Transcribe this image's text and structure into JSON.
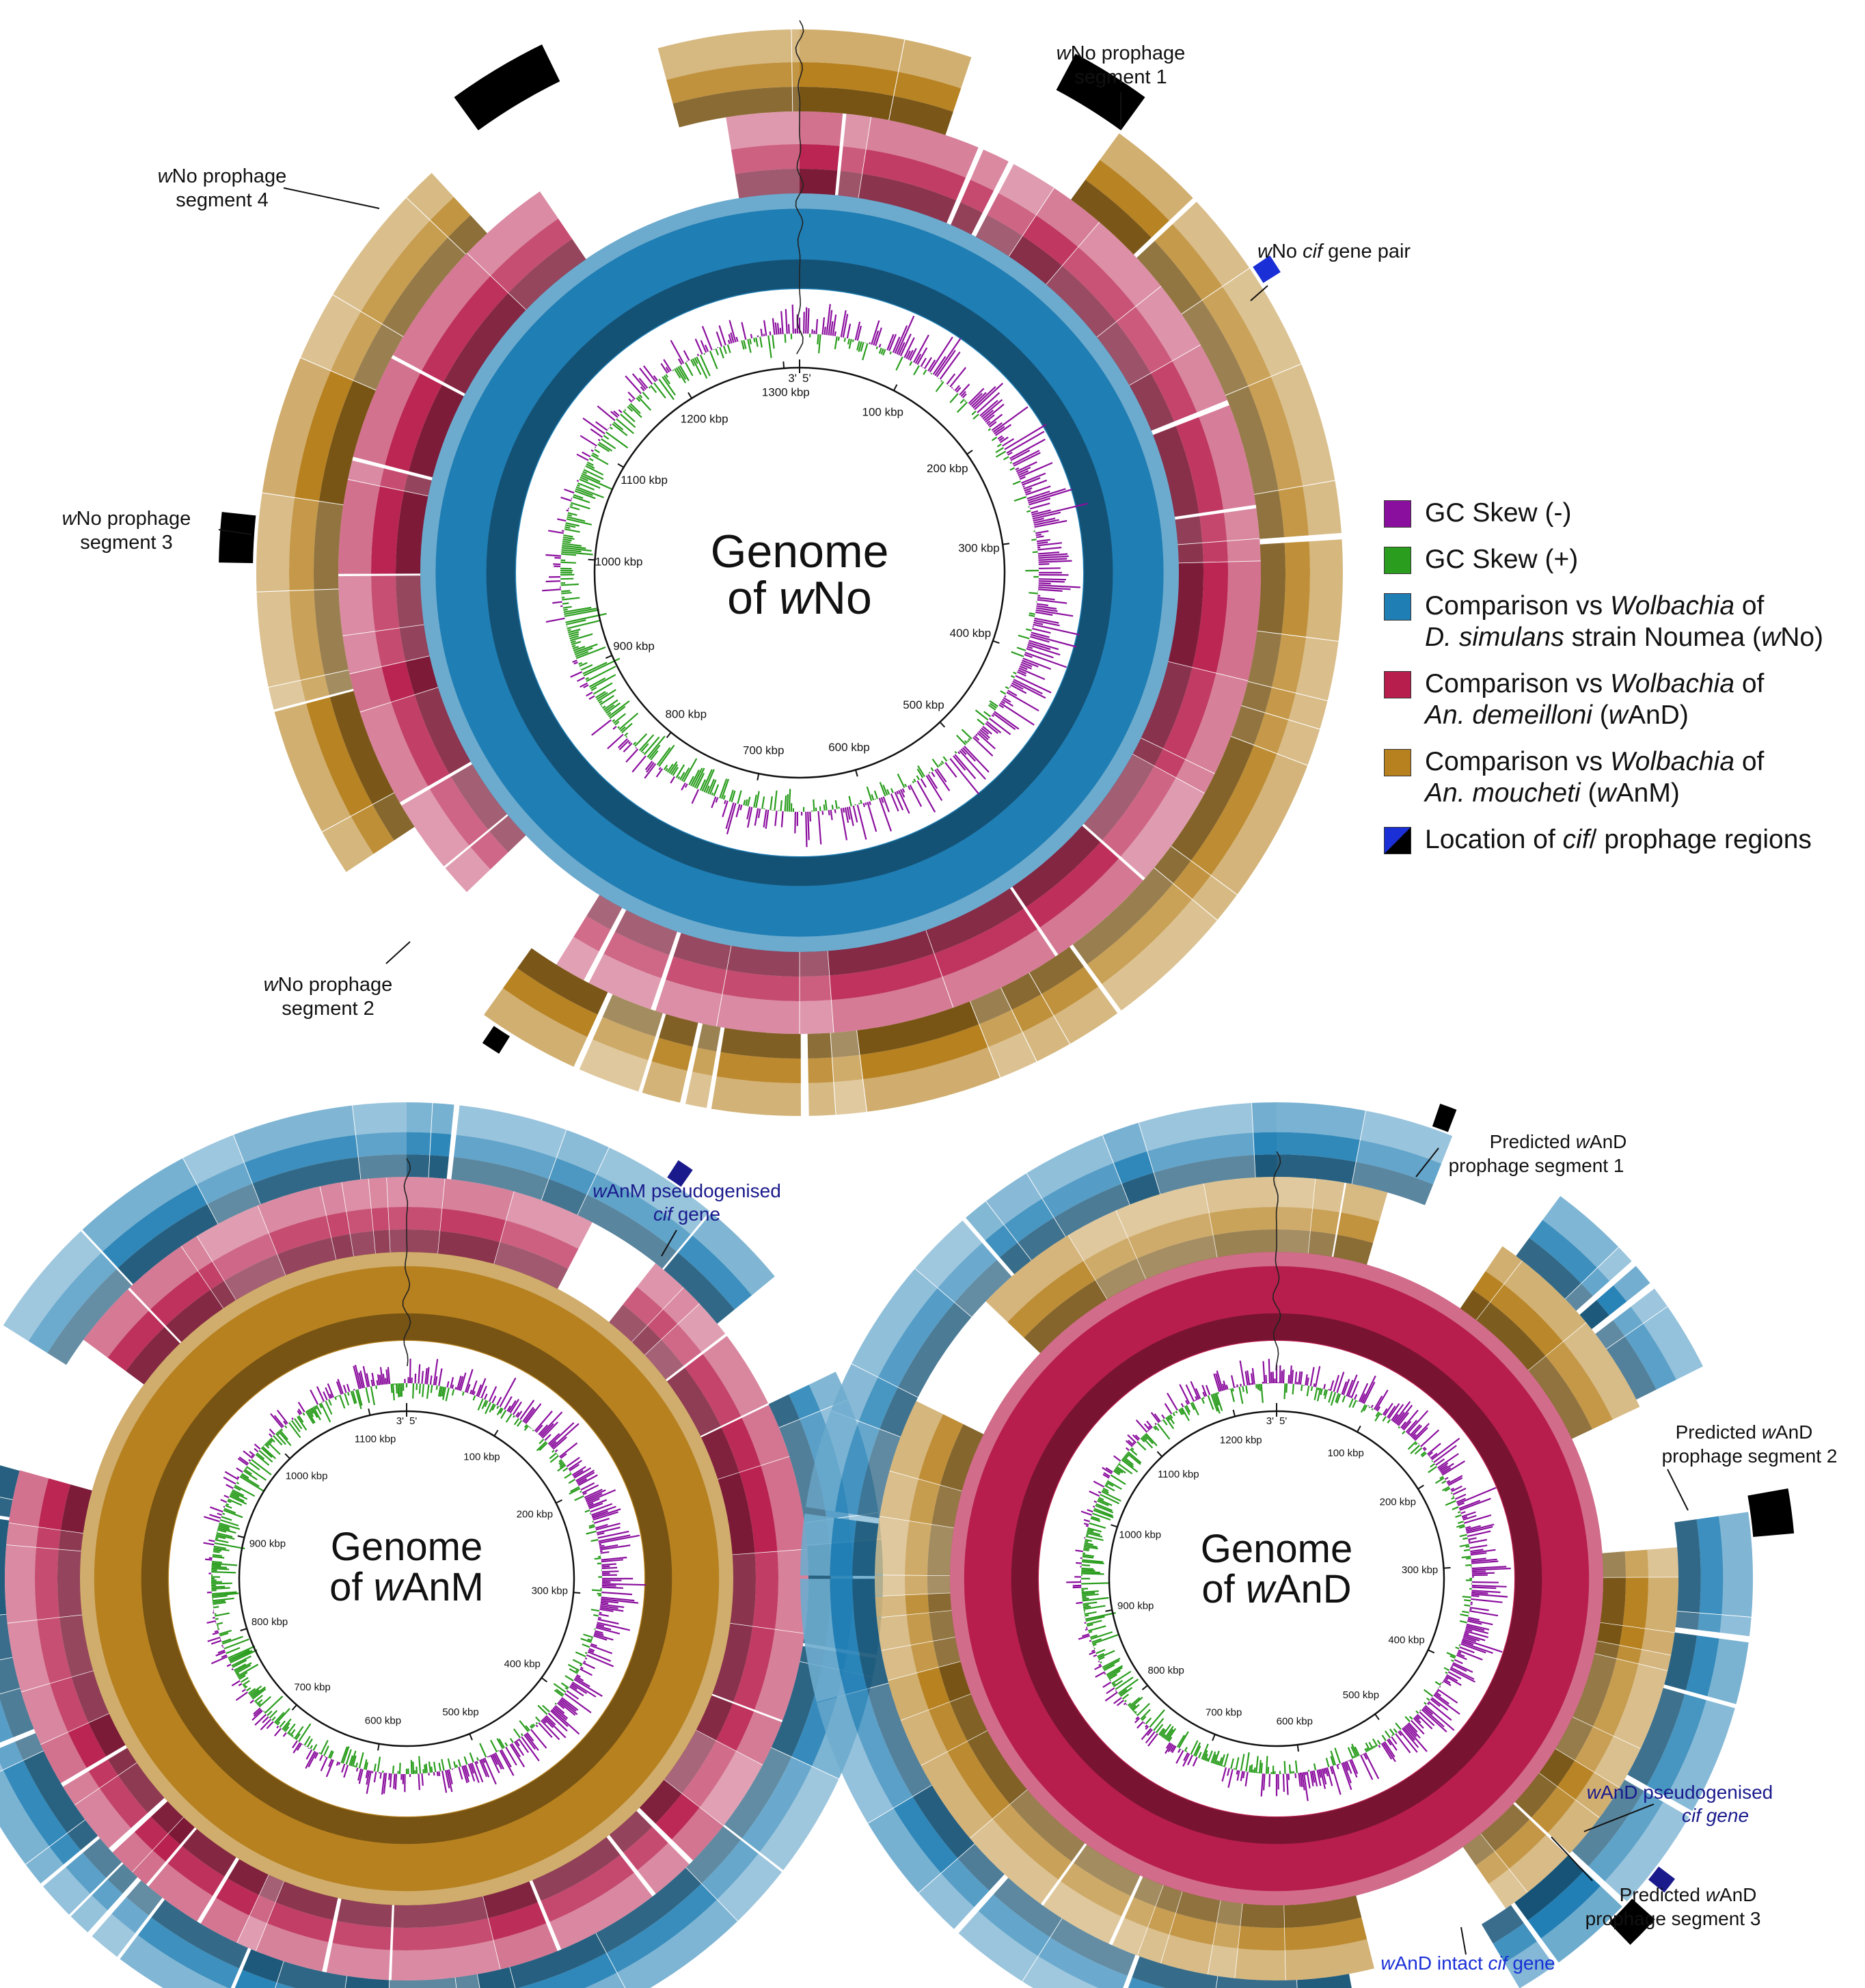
{
  "colors": {
    "gc_skew_negative": "#8b0f9e",
    "gc_skew_positive": "#2a9d1e",
    "wNo_blue": "#1f7eb4",
    "wAnD_crimson": "#b81e4d",
    "wAnM_ochre": "#b7811f",
    "cif_blue": "#1a2fd6",
    "prophage_black": "#000000",
    "dark_blue_label": "#1a1a8c"
  },
  "legend": {
    "gc_neg": "GC Skew (-)",
    "gc_pos": "GC Skew (+)",
    "wNo_pre": "Comparison vs ",
    "wNo_genus": "Wolbachia",
    "wNo_of": " of",
    "wNo_species": "D. simulans",
    "wNo_strain": " strain Noumea (",
    "wNo_w": "w",
    "wNo_code": "No)",
    "wAnD_pre": "Comparison vs ",
    "wAnD_genus": "Wolbachia",
    "wAnD_of": " of",
    "wAnD_species": "An. demeilloni",
    "wAnD_open": " (",
    "wAnD_w": "w",
    "wAnD_code": "AnD)",
    "wAnM_pre": "Comparison vs ",
    "wAnM_genus": "Wolbachia",
    "wAnM_of": " of",
    "wAnM_species": "An. moucheti",
    "wAnM_open": " (",
    "wAnM_w": "w",
    "wAnM_code": "AnM)",
    "cif_pre": "Location of ",
    "cif_it": "cif",
    "cif_post": "/ prophage regions"
  },
  "plots": [
    {
      "id": "wNo",
      "title_line1": "Genome",
      "title_of": "of ",
      "title_w": "w",
      "title_rest": "No",
      "origin_left": "3'",
      "origin_right": "5'",
      "ticks": [
        "100 kbp",
        "200 kbp",
        "300 kbp",
        "400 kbp",
        "500 kbp",
        "600 kbp",
        "700 kbp",
        "800 kbp",
        "900 kbp",
        "1000 kbp",
        "1100 kbp",
        "1200 kbp",
        "1300 kbp"
      ],
      "genome_kbp": 1316,
      "ring_order": [
        "wNo_blue",
        "wAnD_crimson",
        "wAnM_ochre"
      ],
      "annotations": [
        {
          "key": "p1",
          "line1_w": "w",
          "line1_rest": "No prophage",
          "line2": "segment 1"
        },
        {
          "key": "p2",
          "line1_w": "w",
          "line1_rest": "No prophage",
          "line2": "segment 2"
        },
        {
          "key": "p3",
          "line1_w": "w",
          "line1_rest": "No prophage",
          "line2": "segment 3"
        },
        {
          "key": "p4",
          "line1_w": "w",
          "line1_rest": "No prophage",
          "line2": "segment 4"
        },
        {
          "key": "cif",
          "line1_w": "w",
          "line1_rest": "No ",
          "line1_it": "cif",
          "line1_tail": " gene pair"
        }
      ]
    },
    {
      "id": "wAnM",
      "title_line1": "Genome",
      "title_of": "of ",
      "title_w": "w",
      "title_rest": "AnM",
      "origin_left": "3'",
      "origin_right": "5'",
      "ticks": [
        "100 kbp",
        "200 kbp",
        "300 kbp",
        "400 kbp",
        "500 kbp",
        "600 kbp",
        "700 kbp",
        "800 kbp",
        "900 kbp",
        "1000 kbp",
        "1100 kbp"
      ],
      "genome_kbp": 1140,
      "ring_order": [
        "wAnM_ochre",
        "wAnD_crimson",
        "wNo_blue"
      ],
      "annotations": [
        {
          "key": "cif",
          "line1_w": "w",
          "line1_rest": "AnM pseudogenised",
          "line2_it": "cif",
          "line2_tail": " gene"
        }
      ]
    },
    {
      "id": "wAnD",
      "title_line1": "Genome",
      "title_of": "of ",
      "title_w": "w",
      "title_rest": "AnD",
      "origin_left": "3'",
      "origin_right": "5'",
      "ticks": [
        "100 kbp",
        "200 kbp",
        "300 kbp",
        "400 kbp",
        "500 kbp",
        "600 kbp",
        "700 kbp",
        "800 kbp",
        "900 kbp",
        "1000 kbp",
        "1100 kbp",
        "1200 kbp"
      ],
      "genome_kbp": 1250,
      "ring_order": [
        "wAnD_crimson",
        "wAnM_ochre",
        "wNo_blue"
      ],
      "annotations": [
        {
          "key": "p1",
          "line1_pre": "Predicted ",
          "line1_w": "w",
          "line1_rest": "AnD",
          "line2": "prophage segment 1"
        },
        {
          "key": "p2",
          "line1_pre": "Predicted ",
          "line1_w": "w",
          "line1_rest": "AnD",
          "line2": "prophage segment 2"
        },
        {
          "key": "p3",
          "line1_pre": "Predicted ",
          "line1_w": "w",
          "line1_rest": "AnD",
          "line2": "prophage segment 3"
        },
        {
          "key": "cif_pseudo",
          "line1_w": "w",
          "line1_rest": "AnD pseudogenised",
          "line2_it": "cif gene"
        },
        {
          "key": "cif_intact",
          "line1_w": "w",
          "line1_rest": "AnD intact ",
          "line1_it": "cif",
          "line1_tail": " gene"
        }
      ]
    }
  ]
}
